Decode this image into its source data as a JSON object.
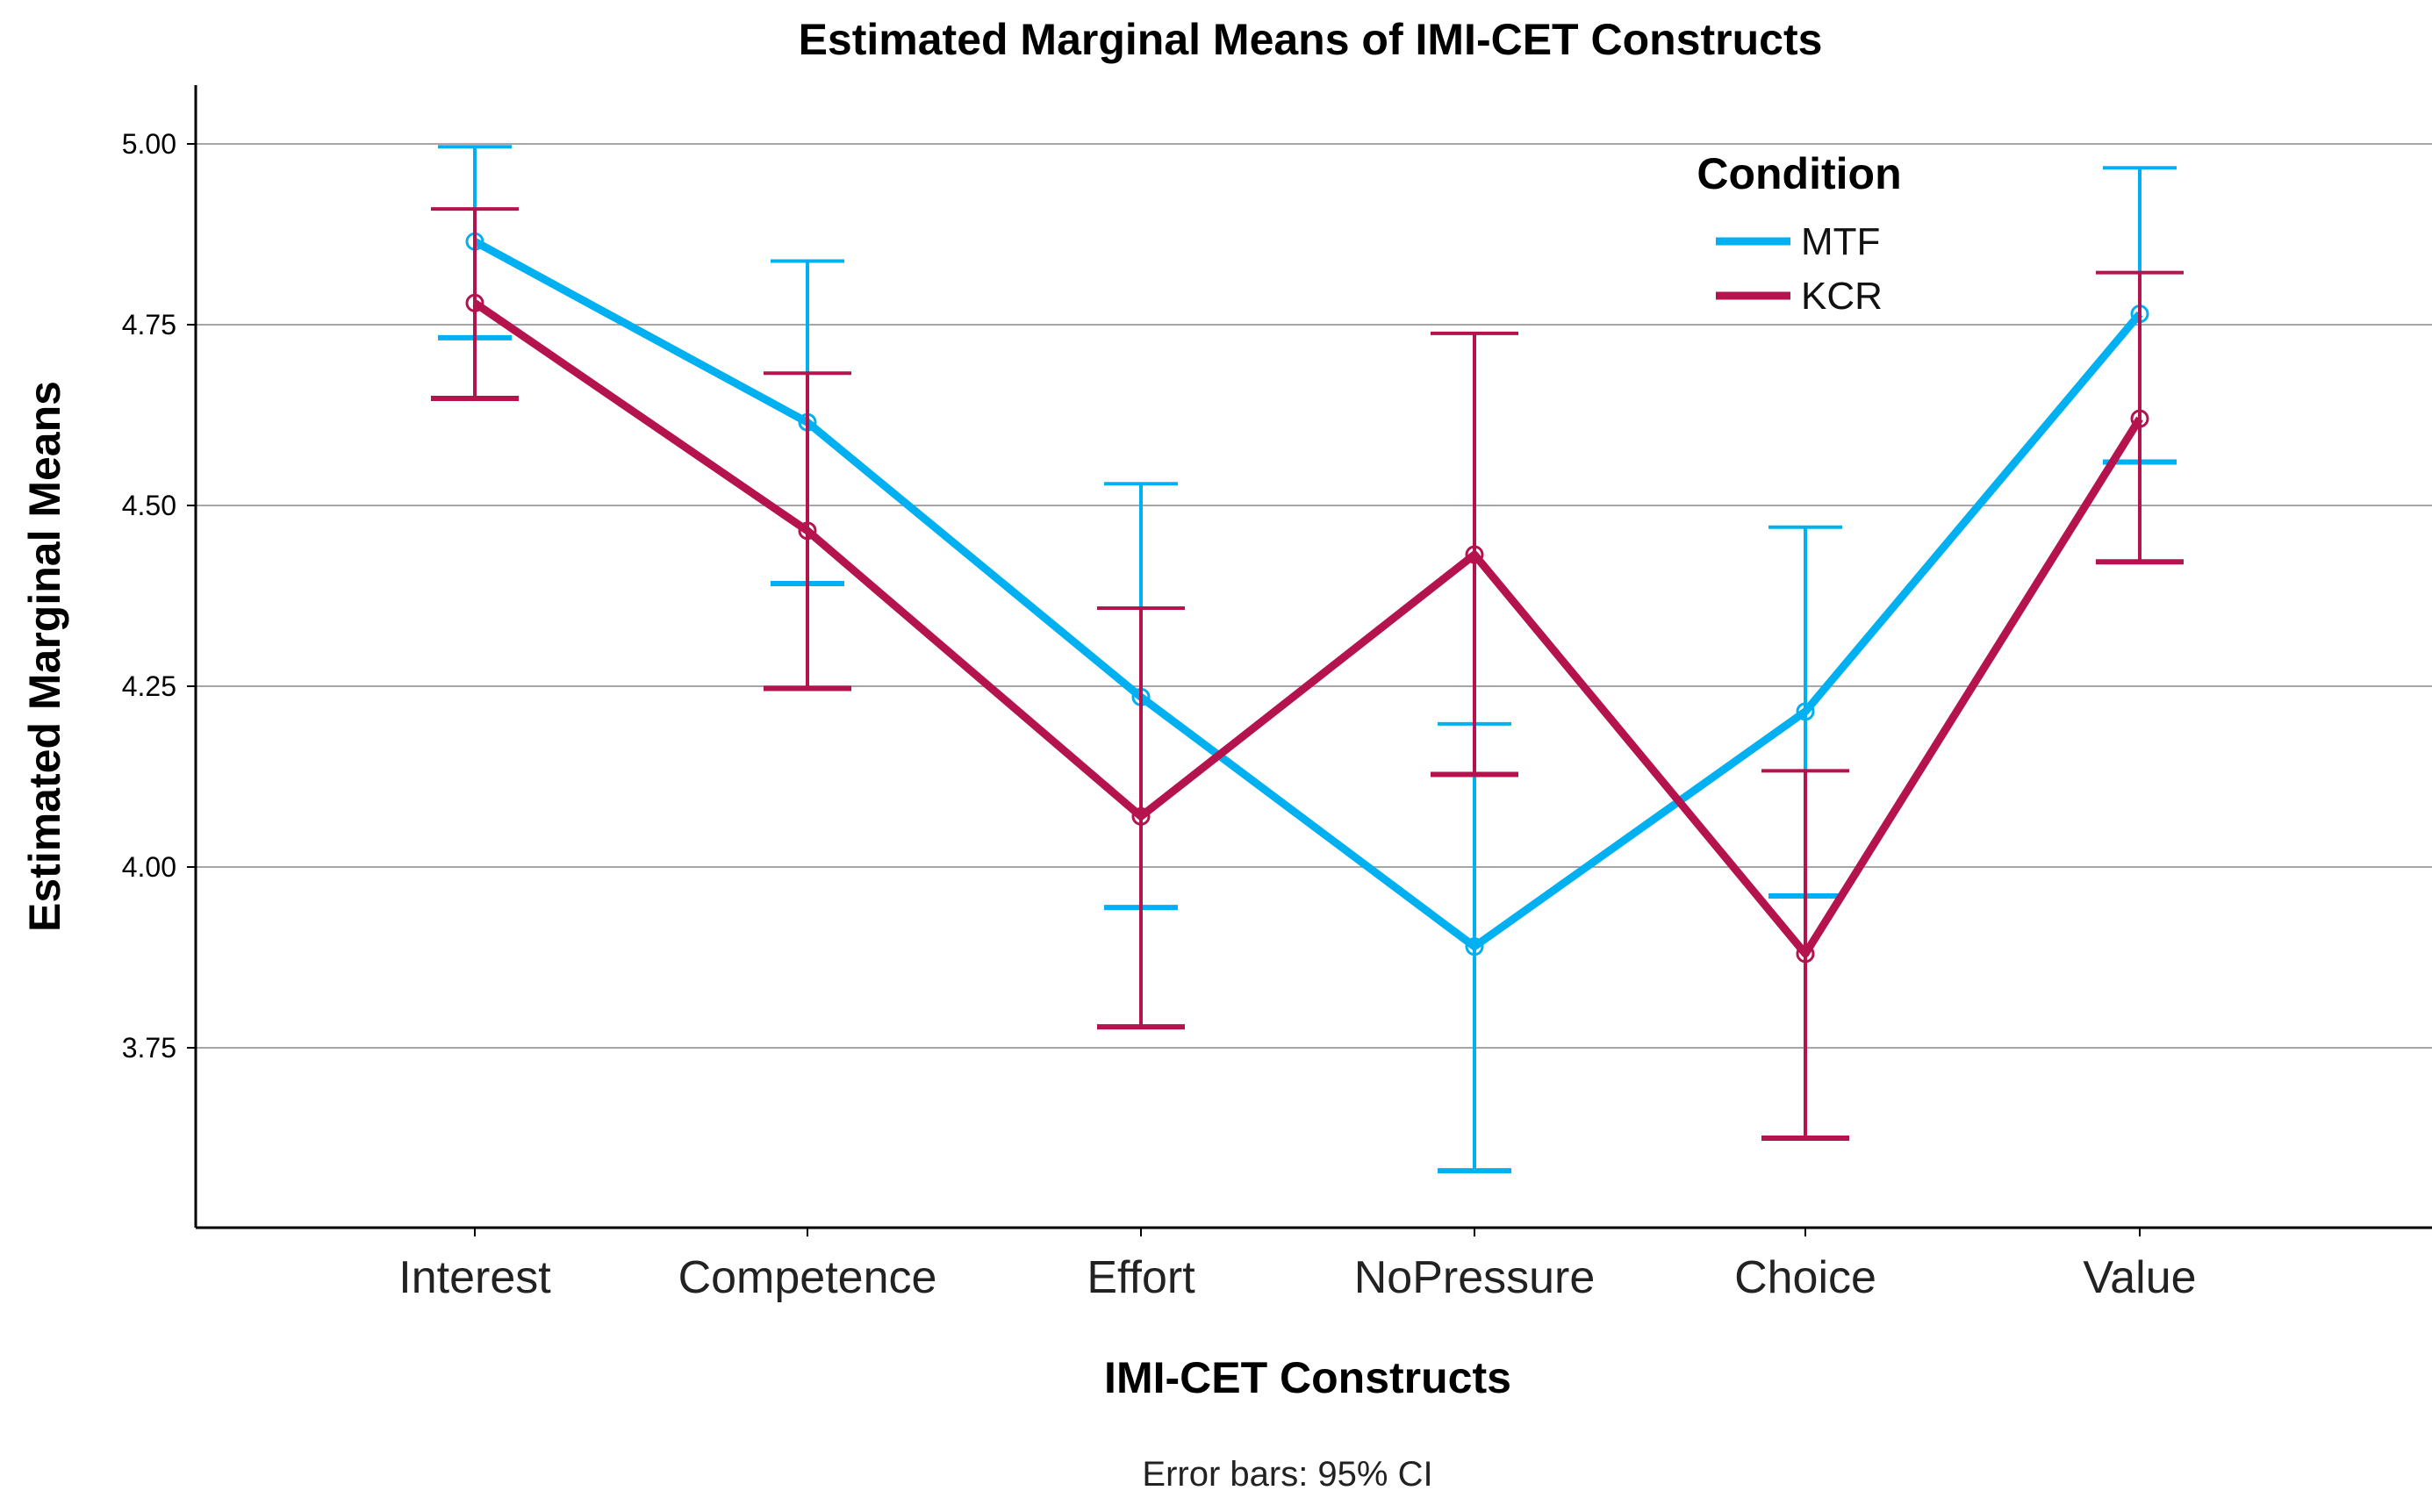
{
  "chart_data": {
    "type": "line",
    "title": "Estimated Marginal Means of IMI-CET Constructs",
    "xlabel": "IMI-CET Constructs",
    "ylabel": "Estimated Marginal Means",
    "footnote": "Error bars: 95% CI",
    "categories": [
      "Interest",
      "Competence",
      "Effort",
      "NoPressure",
      "Choice",
      "Value"
    ],
    "ylim": [
      3.47,
      5.07
    ],
    "yticks": [
      "3.75",
      "4.00",
      "4.25",
      "4.50",
      "4.75",
      "5.00"
    ],
    "grid": true,
    "legend": {
      "title": "Condition",
      "position": "top-right"
    },
    "series": [
      {
        "name": "MTF",
        "color": "#00B0F0",
        "values": [
          4.865,
          4.615,
          4.235,
          3.89,
          4.215,
          4.765
        ],
        "ci_lower": [
          4.732,
          4.392,
          3.944,
          3.58,
          3.96,
          4.56
        ],
        "ci_upper": [
          4.996,
          4.838,
          4.53,
          4.198,
          4.47,
          4.967
        ]
      },
      {
        "name": "KCR",
        "color": "#B5134E",
        "values": [
          4.78,
          4.465,
          4.07,
          4.432,
          3.88,
          4.62
        ],
        "ci_lower": [
          4.648,
          4.247,
          3.779,
          4.128,
          3.625,
          4.422
        ],
        "ci_upper": [
          4.91,
          4.683,
          4.358,
          4.738,
          4.133,
          4.822
        ]
      }
    ]
  }
}
